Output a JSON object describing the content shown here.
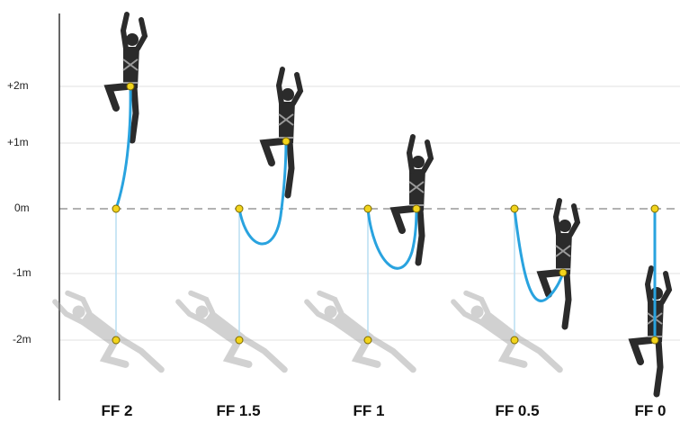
{
  "y_axis": {
    "labels": [
      "+2m",
      "+1m",
      "0m",
      "-1m",
      "-2m"
    ]
  },
  "columns": [
    {
      "label": "FF 2"
    },
    {
      "label": "FF 1.5"
    },
    {
      "label": "FF 1"
    },
    {
      "label": "FF 0.5"
    },
    {
      "label": "FF 0"
    }
  ]
}
